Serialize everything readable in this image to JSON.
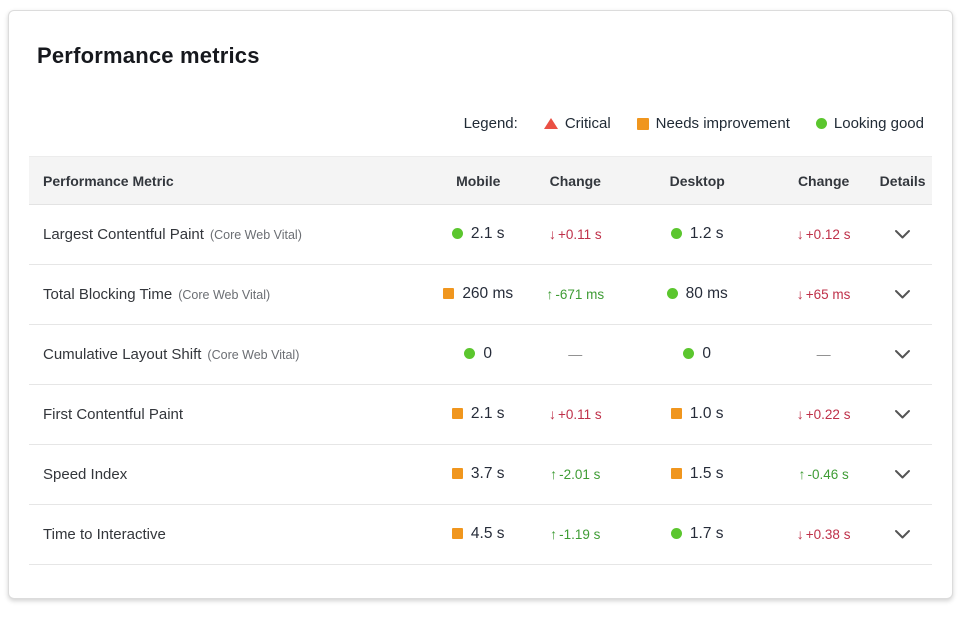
{
  "page": {
    "title": "Performance metrics"
  },
  "legend": {
    "label": "Legend:",
    "items": [
      {
        "name": "critical",
        "label": "Critical",
        "shape": "triangle",
        "color": "#ea5044"
      },
      {
        "name": "needs-improvement",
        "label": "Needs improvement",
        "shape": "square",
        "color": "#f0961e"
      },
      {
        "name": "looking-good",
        "label": "Looking good",
        "shape": "circle",
        "color": "#5bc62e"
      }
    ]
  },
  "colors": {
    "good": "#5bc62e",
    "warn": "#f0961e",
    "critical": "#ea5044",
    "trend_bad": "#bf3049",
    "trend_good": "#3f9c35",
    "neutral": "#8a8a8a"
  },
  "table": {
    "columns": [
      "Performance Metric",
      "Mobile",
      "Change",
      "Desktop",
      "Change",
      "Details"
    ],
    "no_change": "—",
    "arrows": {
      "down": "↓",
      "up": "↑"
    },
    "rows": [
      {
        "metric": "Largest Contentful Paint",
        "tag": "(Core Web Vital)",
        "mobile": {
          "status": "good",
          "value": "2.1 s"
        },
        "mobile_change": {
          "direction": "down",
          "value": "+0.11 s",
          "trend": "bad"
        },
        "desktop": {
          "status": "good",
          "value": "1.2 s"
        },
        "desktop_change": {
          "direction": "down",
          "value": "+0.12 s",
          "trend": "bad"
        }
      },
      {
        "metric": "Total Blocking Time",
        "tag": "(Core Web Vital)",
        "mobile": {
          "status": "warn",
          "value": "260 ms"
        },
        "mobile_change": {
          "direction": "up",
          "value": "-671 ms",
          "trend": "good"
        },
        "desktop": {
          "status": "good",
          "value": "80 ms"
        },
        "desktop_change": {
          "direction": "down",
          "value": "+65 ms",
          "trend": "bad"
        }
      },
      {
        "metric": "Cumulative Layout Shift",
        "tag": "(Core Web Vital)",
        "mobile": {
          "status": "good",
          "value": "0"
        },
        "mobile_change": null,
        "desktop": {
          "status": "good",
          "value": "0"
        },
        "desktop_change": null
      },
      {
        "metric": "First Contentful Paint",
        "tag": "",
        "mobile": {
          "status": "warn",
          "value": "2.1 s"
        },
        "mobile_change": {
          "direction": "down",
          "value": "+0.11 s",
          "trend": "bad"
        },
        "desktop": {
          "status": "warn",
          "value": "1.0 s"
        },
        "desktop_change": {
          "direction": "down",
          "value": "+0.22 s",
          "trend": "bad"
        }
      },
      {
        "metric": "Speed Index",
        "tag": "",
        "mobile": {
          "status": "warn",
          "value": "3.7 s"
        },
        "mobile_change": {
          "direction": "up",
          "value": "-2.01 s",
          "trend": "good"
        },
        "desktop": {
          "status": "warn",
          "value": "1.5 s"
        },
        "desktop_change": {
          "direction": "up",
          "value": "-0.46 s",
          "trend": "good"
        }
      },
      {
        "metric": "Time to Interactive",
        "tag": "",
        "mobile": {
          "status": "warn",
          "value": "4.5 s"
        },
        "mobile_change": {
          "direction": "up",
          "value": "-1.19 s",
          "trend": "good"
        },
        "desktop": {
          "status": "good",
          "value": "1.7 s"
        },
        "desktop_change": {
          "direction": "down",
          "value": "+0.38 s",
          "trend": "bad"
        }
      }
    ]
  }
}
